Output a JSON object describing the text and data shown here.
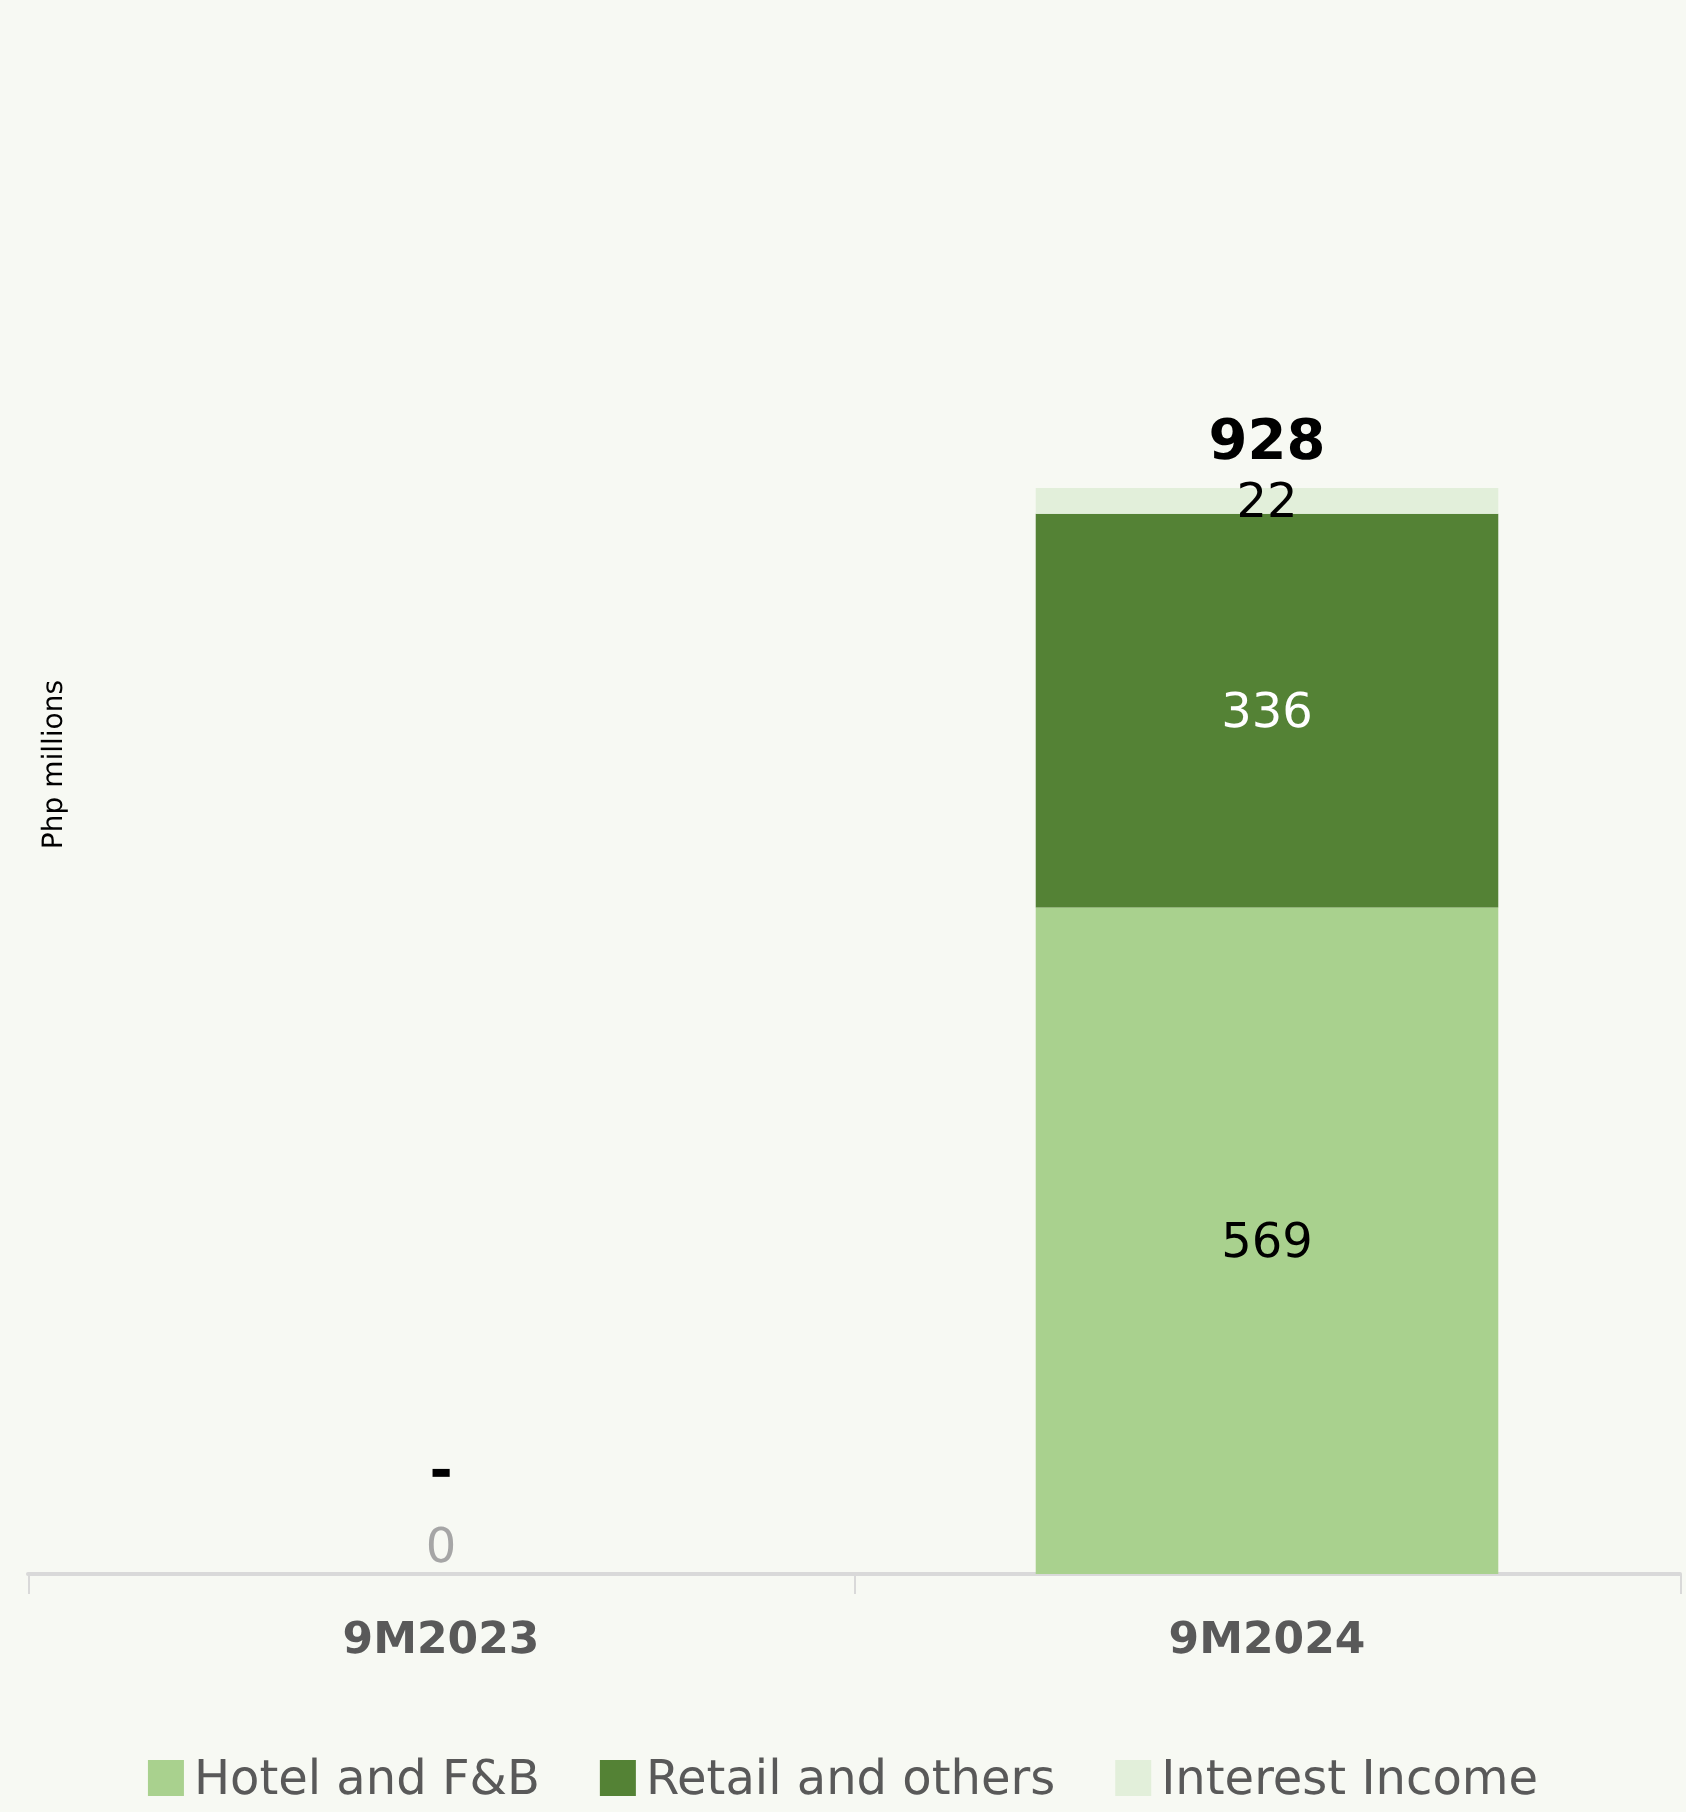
{
  "chart_data": {
    "type": "bar",
    "stacked": true,
    "annotations": [
      "Php millions"
    ],
    "categories": [
      "9M2023",
      "9M2024"
    ],
    "series": [
      {
        "name": "Hotel and F&B",
        "color": "#a9d18e",
        "values": [
          0,
          569
        ],
        "value_labels": [
          "0",
          "569"
        ]
      },
      {
        "name": "Retail and others",
        "color": "#548235",
        "values": [
          null,
          336
        ],
        "value_labels": [
          null,
          "336"
        ]
      },
      {
        "name": "Interest Income",
        "color": "#e2efda",
        "values": [
          null,
          22
        ],
        "value_labels": [
          null,
          "22"
        ]
      }
    ],
    "totals": [
      "-",
      "928"
    ],
    "legend": "bottom"
  }
}
